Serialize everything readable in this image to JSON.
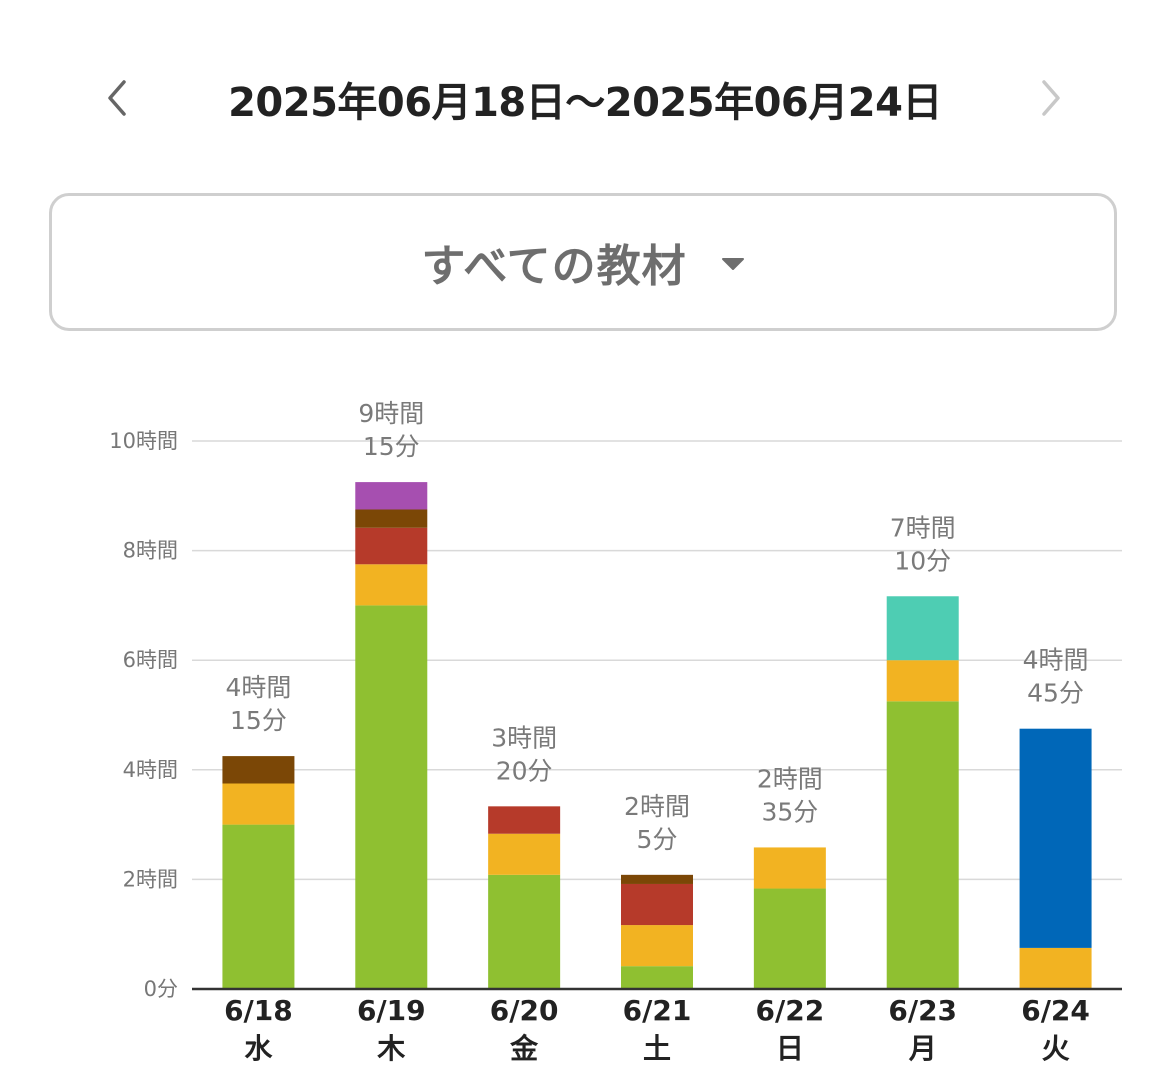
{
  "header": {
    "date_range": "2025年06月18日〜2025年06月24日",
    "prev_icon": "chevron-left-icon",
    "next_icon": "chevron-right-icon"
  },
  "selector": {
    "label": "すべての教材",
    "icon": "caret-down-icon"
  },
  "colors": {
    "green": "#8fc031",
    "yellow": "#f2b322",
    "red": "#b63a2a",
    "brown": "#7b4706",
    "purple": "#a64fb0",
    "teal": "#4ecdb3",
    "blue": "#0067b8",
    "grid": "#d9d9d9",
    "axis": "#333333"
  },
  "chart_data": {
    "type": "bar",
    "stacked": true,
    "yticks": [
      {
        "value": 0,
        "label": "0分"
      },
      {
        "value": 120,
        "label": "2時間"
      },
      {
        "value": 240,
        "label": "4時間"
      },
      {
        "value": 360,
        "label": "6時間"
      },
      {
        "value": 480,
        "label": "8時間"
      },
      {
        "value": 600,
        "label": "10時間"
      }
    ],
    "ylim": [
      0,
      600
    ],
    "grid": true,
    "legend": "none",
    "y_unit": "minutes",
    "categories": [
      {
        "date": "6/18",
        "dow": "水",
        "total": [
          "4時間",
          "15分"
        ]
      },
      {
        "date": "6/19",
        "dow": "木",
        "total": [
          "9時間",
          "15分"
        ]
      },
      {
        "date": "6/20",
        "dow": "金",
        "total": [
          "3時間",
          "20分"
        ]
      },
      {
        "date": "6/21",
        "dow": "土",
        "total": [
          "2時間",
          "5分"
        ]
      },
      {
        "date": "6/22",
        "dow": "日",
        "total": [
          "2時間",
          "35分"
        ]
      },
      {
        "date": "6/23",
        "dow": "月",
        "total": [
          "7時間",
          "10分"
        ]
      },
      {
        "date": "6/24",
        "dow": "火",
        "total": [
          "4時間",
          "45分"
        ]
      }
    ],
    "series": [
      {
        "color": "#8fc031",
        "values": [
          180,
          420,
          125,
          25,
          110,
          315,
          0
        ]
      },
      {
        "color": "#f2b322",
        "values": [
          45,
          45,
          45,
          45,
          45,
          45,
          45
        ]
      },
      {
        "color": "#b63a2a",
        "values": [
          0,
          40,
          30,
          45,
          0,
          0,
          0
        ]
      },
      {
        "color": "#7b4706",
        "values": [
          30,
          20,
          0,
          10,
          0,
          0,
          0
        ]
      },
      {
        "color": "#a64fb0",
        "values": [
          0,
          30,
          0,
          0,
          0,
          0,
          0
        ]
      },
      {
        "color": "#4ecdb3",
        "values": [
          0,
          0,
          0,
          0,
          0,
          70,
          0
        ]
      },
      {
        "color": "#0067b8",
        "values": [
          0,
          0,
          0,
          0,
          0,
          0,
          240
        ]
      }
    ]
  }
}
